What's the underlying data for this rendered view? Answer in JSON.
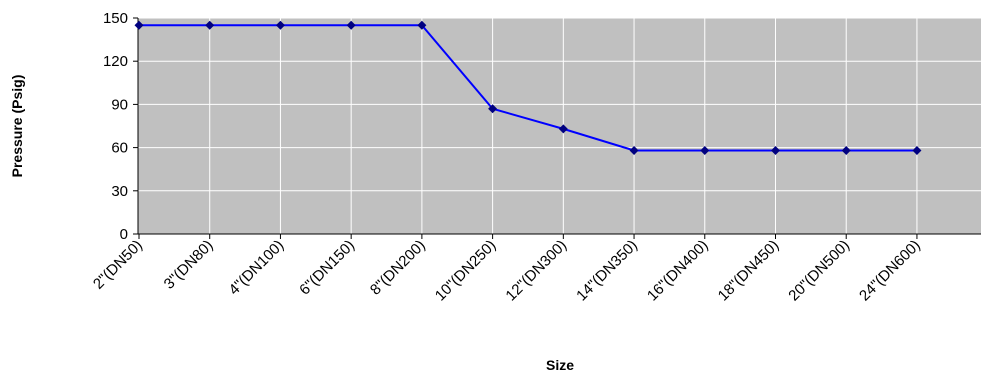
{
  "chart_data": {
    "type": "line",
    "title": "",
    "xlabel": "Size",
    "ylabel": "Pressure (Psig)",
    "categories": [
      "2\"(DN50)",
      "3\"(DN80)",
      "4\"(DN100)",
      "6\"(DN150)",
      "8\"(DN200)",
      "10\"(DN250)",
      "12\"(DN300)",
      "14\"(DN350)",
      "16\"(DN400)",
      "18\"(DN450)",
      "20\"(DN500)",
      "24\"(DN600)"
    ],
    "series": [
      {
        "values": [
          145,
          145,
          145,
          145,
          145,
          87,
          73,
          58,
          58,
          58,
          58,
          58
        ]
      }
    ],
    "ylim": [
      0,
      150
    ],
    "yticks": [
      0,
      30,
      60,
      90,
      120,
      150
    ],
    "grid": true,
    "legend": "none",
    "colors": {
      "plot_background": "#c0c0c0",
      "grid": "#ffffff",
      "line": "#0000ff",
      "marker": "#000080"
    }
  }
}
